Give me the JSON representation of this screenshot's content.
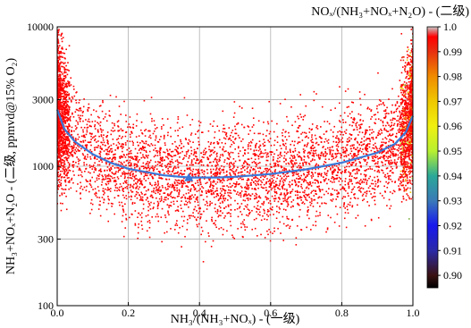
{
  "chart_data": {
    "type": "scatter",
    "xlabel": "NH₃/(NH₃+NOₓ) - (一级)",
    "ylabel": "NH₃+NOₓ+N₂O - (二级, ppmvd@15% O₂)",
    "colorbar_label": "NOₓ/(NH₃+NOₓ+N₂O) - (二级)",
    "xlim": [
      0.0,
      1.0
    ],
    "ylim": [
      100,
      10000
    ],
    "y_scale": "log",
    "grid": true,
    "x_ticks": [
      "0.0",
      "0.2",
      "0.4",
      "0.6",
      "0.8",
      "1.0"
    ],
    "y_ticks": [
      "100",
      "300",
      "1000",
      "3000",
      "10000"
    ],
    "colorbar": {
      "range": [
        0.895,
        1.0
      ],
      "ticks": [
        "1.0",
        "0.99",
        "0.98",
        "0.97",
        "0.96",
        "0.95",
        "0.94",
        "0.93",
        "0.92",
        "0.91",
        "0.90"
      ],
      "stops": [
        {
          "value": 0.895,
          "color": "#000000"
        },
        {
          "value": 0.9,
          "color": "#3a1212"
        },
        {
          "value": 0.91,
          "color": "#2a2aa8"
        },
        {
          "value": 0.92,
          "color": "#1818ee"
        },
        {
          "value": 0.93,
          "color": "#3a7ab8"
        },
        {
          "value": 0.94,
          "color": "#2aa898"
        },
        {
          "value": 0.95,
          "color": "#b8f030"
        },
        {
          "value": 0.96,
          "color": "#f0f010"
        },
        {
          "value": 0.97,
          "color": "#f0c800"
        },
        {
          "value": 0.98,
          "color": "#f08c00"
        },
        {
          "value": 0.99,
          "color": "#e83010"
        },
        {
          "value": 0.996,
          "color": "#ff0000"
        },
        {
          "value": 1.0,
          "color": "#c8c8c8"
        }
      ]
    },
    "scatter_color": "#ff0000",
    "trend_line": {
      "color": "#3a78d8",
      "x": [
        0.0,
        0.02,
        0.05,
        0.1,
        0.15,
        0.2,
        0.3,
        0.37,
        0.45,
        0.5,
        0.6,
        0.7,
        0.8,
        0.9,
        0.95,
        0.98,
        1.0
      ],
      "y": [
        2550,
        1850,
        1500,
        1220,
        1060,
        960,
        860,
        830,
        830,
        840,
        880,
        950,
        1060,
        1250,
        1450,
        1750,
        2300
      ]
    },
    "marker": {
      "x": 0.37,
      "y": 830,
      "shape": "triangle",
      "color": "#3a78d8"
    }
  }
}
